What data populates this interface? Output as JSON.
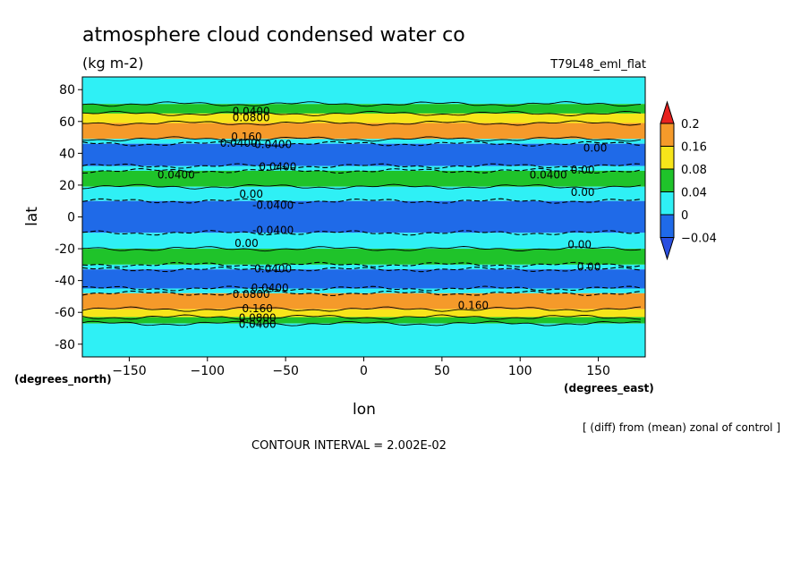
{
  "chart_data": {
    "type": "heatmap",
    "title": "atmosphere cloud condensed water co",
    "units": "(kg m-2)",
    "experiment": "T79L48_eml_flat",
    "xlabel": "lon",
    "ylabel": "lat",
    "x_units": "(degrees_east)",
    "y_units": "(degrees_north)",
    "xlim": [
      -180,
      180
    ],
    "ylim": [
      -88,
      88
    ],
    "x_ticks": [
      "-150",
      "-100",
      "-50",
      "0",
      "50",
      "100",
      "150"
    ],
    "y_ticks": [
      "80",
      "60",
      "40",
      "20",
      "0",
      "-20",
      "-40",
      "-60",
      "-80"
    ],
    "note": "[ (diff) from (mean) zonal of control ]",
    "contour_interval": "CONTOUR INTERVAL = 2.002E-02",
    "colorbar": {
      "levels": [
        "0.2",
        "0.16",
        "0.08",
        "0.04",
        "0",
        "-0.04"
      ],
      "colors": [
        "#e8221f",
        "#f59a2a",
        "#f7e51a",
        "#1fc32a",
        "#2ff0f5",
        "#1f6ae8",
        "#2a4fe0"
      ]
    },
    "zonal_bands": [
      {
        "lat_min": 71,
        "lat_max": 88,
        "class": "0-0.04"
      },
      {
        "lat_min": 65,
        "lat_max": 71,
        "class": "0.04-0.08"
      },
      {
        "lat_min": 59,
        "lat_max": 65,
        "class": "0.08-0.16"
      },
      {
        "lat_min": 49,
        "lat_max": 59,
        "class": "0.16-0.2"
      },
      {
        "lat_min": 46,
        "lat_max": 49,
        "class": "0-0.04"
      },
      {
        "lat_min": 32,
        "lat_max": 46,
        "class": "<-0.04"
      },
      {
        "lat_min": 29,
        "lat_max": 32,
        "class": "0-0.04"
      },
      {
        "lat_min": 19,
        "lat_max": 29,
        "class": "0.04-0.08"
      },
      {
        "lat_min": 10,
        "lat_max": 19,
        "class": "0-0.04"
      },
      {
        "lat_min": -10,
        "lat_max": 10,
        "class": "<-0.04"
      },
      {
        "lat_min": -20,
        "lat_max": -10,
        "class": "0-0.04"
      },
      {
        "lat_min": -30,
        "lat_max": -20,
        "class": "0.04-0.08"
      },
      {
        "lat_min": -33,
        "lat_max": -30,
        "class": "0-0.04"
      },
      {
        "lat_min": -45,
        "lat_max": -33,
        "class": "<-0.04"
      },
      {
        "lat_min": -48,
        "lat_max": -45,
        "class": "0-0.04"
      },
      {
        "lat_min": -58,
        "lat_max": -48,
        "class": "0.16-0.2"
      },
      {
        "lat_min": -63,
        "lat_max": -58,
        "class": "0.08-0.16"
      },
      {
        "lat_min": -67,
        "lat_max": -63,
        "class": "0.04-0.08"
      },
      {
        "lat_min": -88,
        "lat_max": -67,
        "class": "0-0.04"
      }
    ],
    "contour_labels": [
      {
        "text": "0.0400",
        "lon": -72,
        "lat": 67
      },
      {
        "text": "0.0800",
        "lon": -72,
        "lat": 63
      },
      {
        "text": "0.160",
        "lon": -75,
        "lat": 51
      },
      {
        "text": "0.0400",
        "lon": -80,
        "lat": 47
      },
      {
        "text": "0.0400",
        "lon": -58,
        "lat": 46
      },
      {
        "text": "0.0400",
        "lon": -55,
        "lat": 32
      },
      {
        "text": "0.00",
        "lon": 148,
        "lat": 44
      },
      {
        "text": "0.0400",
        "lon": -120,
        "lat": 27
      },
      {
        "text": "0.0400",
        "lon": 118,
        "lat": 27
      },
      {
        "text": "0.00",
        "lon": 140,
        "lat": 30
      },
      {
        "text": "0.00",
        "lon": 140,
        "lat": 16
      },
      {
        "text": "0.00",
        "lon": -72,
        "lat": 15
      },
      {
        "text": "-0.0400",
        "lon": -58,
        "lat": 8
      },
      {
        "text": "-0.0400",
        "lon": -58,
        "lat": -8
      },
      {
        "text": "0.00",
        "lon": -75,
        "lat": -16
      },
      {
        "text": "0.00",
        "lon": 138,
        "lat": -17
      },
      {
        "text": "0.00",
        "lon": 144,
        "lat": -31
      },
      {
        "text": "0.0400",
        "lon": -58,
        "lat": -32
      },
      {
        "text": "0.0400",
        "lon": -60,
        "lat": -44
      },
      {
        "text": "0.0800",
        "lon": -72,
        "lat": -48
      },
      {
        "text": "0.160",
        "lon": 70,
        "lat": -55
      },
      {
        "text": "0.160",
        "lon": -68,
        "lat": -57
      },
      {
        "text": "0.0800",
        "lon": -68,
        "lat": -63
      },
      {
        "text": "0.0400",
        "lon": -68,
        "lat": -67
      }
    ]
  }
}
